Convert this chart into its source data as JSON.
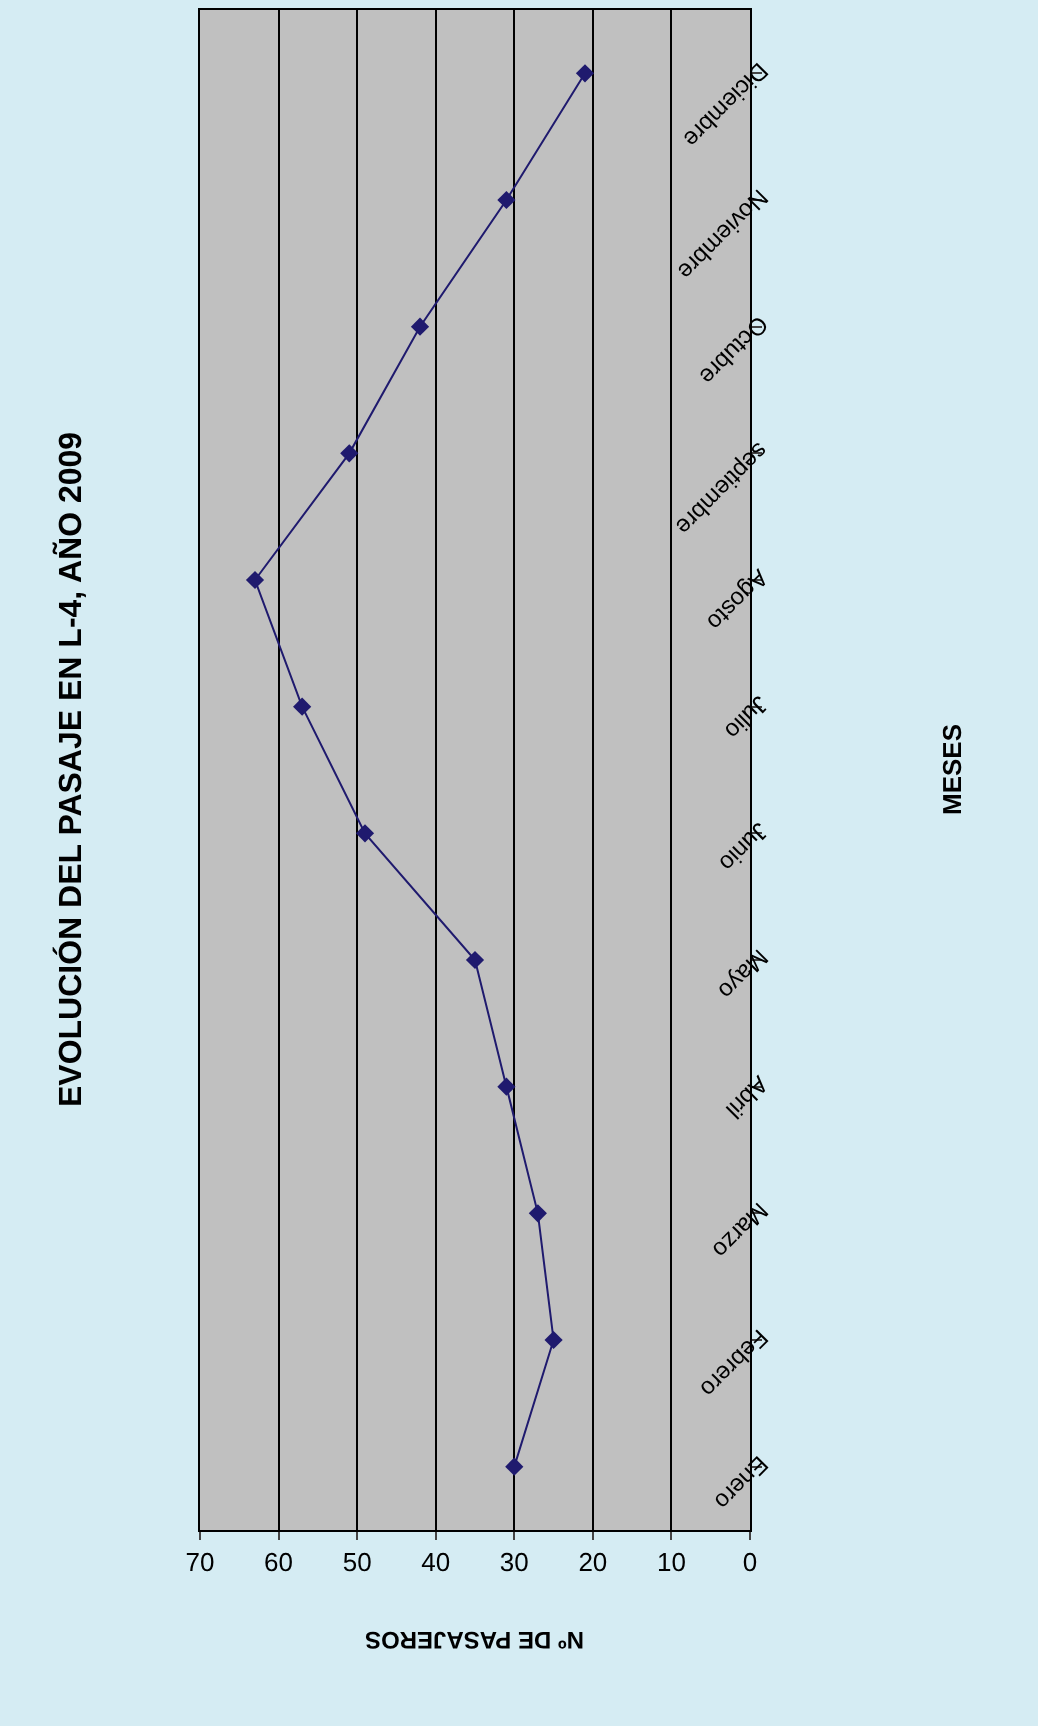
{
  "chart_data": {
    "type": "line",
    "orientation": "horizontal",
    "title": "EVOLUCIÓN DEL PASAJE EN L-4, AÑO 2009",
    "xlabel": "Nº DE PASAJEROS",
    "annotations": [
      "MESES"
    ],
    "categories": [
      "Diciembre",
      "Noviembre",
      "Octubre",
      "septiembre",
      "Agosto",
      "Julio",
      "Junio",
      "Mayo",
      "Abril",
      "Marzo",
      "Febrero",
      "Enero"
    ],
    "series": [
      {
        "color": "#1f1a6e",
        "values": [
          21,
          31,
          42,
          51,
          63,
          57,
          49,
          35,
          31,
          27,
          25,
          30
        ]
      }
    ],
    "xlim": [
      70,
      0
    ],
    "xticks": [
      0,
      10,
      20,
      30,
      40,
      50,
      60,
      70
    ],
    "grid": "x",
    "marker": "diamond",
    "line_style": "solid",
    "legend": false
  }
}
